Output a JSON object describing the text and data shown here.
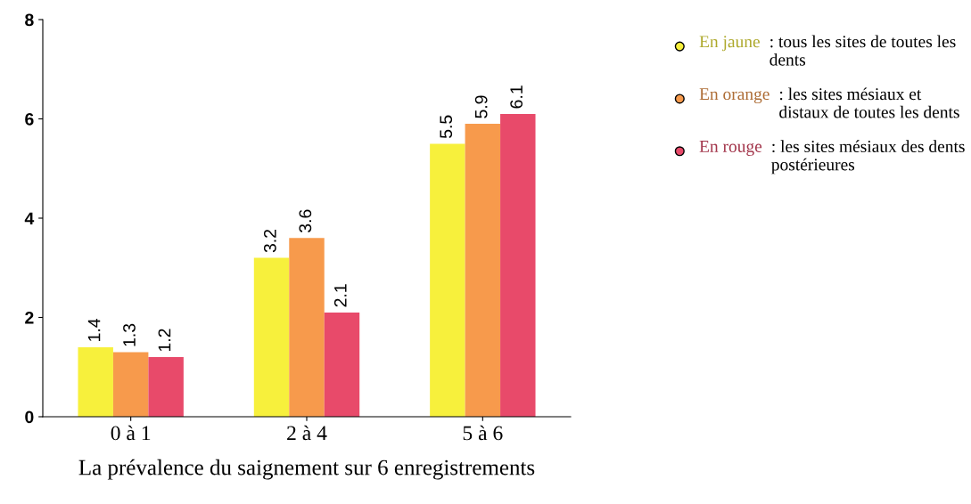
{
  "chart_data": {
    "type": "bar",
    "xlabel": "La prévalence du saignement sur 6 enregistrements",
    "categories": [
      "0 à 1",
      "2 à 4",
      "5 à 6"
    ],
    "series": [
      {
        "name": "En jaune : tous les sites de toutes les dents",
        "color": "#f7f03c",
        "values": [
          1.4,
          3.2,
          5.5
        ]
      },
      {
        "name": "En orange : les sites mésiaux et distaux de toutes les dents",
        "color": "#f79a4c",
        "values": [
          1.3,
          3.6,
          5.9
        ]
      },
      {
        "name": "En rouge : les sites mésiaux des dents postérieures",
        "color": "#e84a6a",
        "values": [
          1.2,
          2.1,
          6.1
        ]
      }
    ],
    "ylim": [
      0,
      8
    ],
    "yticks": [
      0,
      2,
      4,
      6,
      8
    ],
    "grid": false,
    "legend": "right",
    "data_labels": true
  }
}
